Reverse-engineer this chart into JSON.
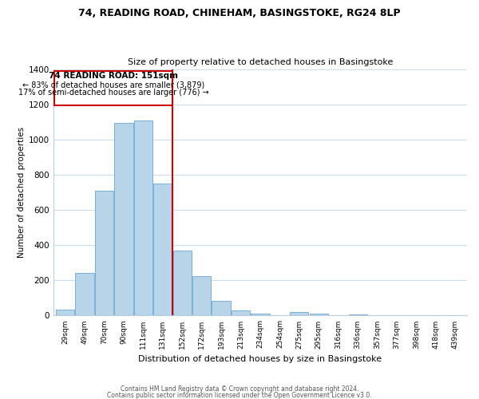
{
  "title": "74, READING ROAD, CHINEHAM, BASINGSTOKE, RG24 8LP",
  "subtitle": "Size of property relative to detached houses in Basingstoke",
  "xlabel": "Distribution of detached houses by size in Basingstoke",
  "ylabel": "Number of detached properties",
  "bar_color": "#b8d4e8",
  "bar_edge_color": "#7bafd4",
  "categories": [
    "29sqm",
    "49sqm",
    "70sqm",
    "90sqm",
    "111sqm",
    "131sqm",
    "152sqm",
    "172sqm",
    "193sqm",
    "213sqm",
    "234sqm",
    "254sqm",
    "275sqm",
    "295sqm",
    "316sqm",
    "336sqm",
    "357sqm",
    "377sqm",
    "398sqm",
    "418sqm",
    "439sqm"
  ],
  "values": [
    35,
    240,
    710,
    1095,
    1110,
    750,
    370,
    225,
    85,
    30,
    10,
    0,
    20,
    10,
    0,
    5,
    0,
    0,
    0,
    0,
    0
  ],
  "ylim": [
    0,
    1400
  ],
  "yticks": [
    0,
    200,
    400,
    600,
    800,
    1000,
    1200,
    1400
  ],
  "property_label": "74 READING ROAD: 151sqm",
  "annotation_line1": "← 83% of detached houses are smaller (3,879)",
  "annotation_line2": "17% of semi-detached houses are larger (776) →",
  "vline_x_index": 6,
  "box_color": "white",
  "box_edge_color": "#cc0000",
  "vline_color": "#cc0000",
  "footer1": "Contains HM Land Registry data © Crown copyright and database right 2024.",
  "footer2": "Contains public sector information licensed under the Open Government Licence v3.0.",
  "background_color": "#ffffff",
  "grid_color": "#ccdded"
}
